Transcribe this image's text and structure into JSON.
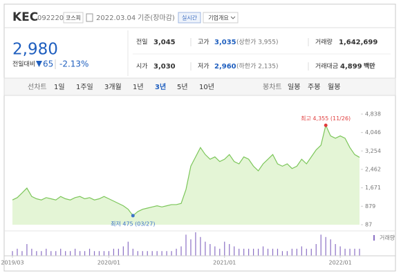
{
  "header": {
    "name": "KEC",
    "code": "092220",
    "market": "코스피",
    "date": "2022.03.04",
    "basis": "기준(장마감)",
    "realtime": "실시간",
    "company": "기업개요"
  },
  "quote": {
    "price": "2,980",
    "change_label": "전일대비",
    "change": "65",
    "change_pct": "-2.13%",
    "rows": [
      [
        [
          "전일",
          "3,045",
          ""
        ],
        [
          "고가",
          "3,035",
          "(상한가 3,955)"
        ],
        [
          "거래량",
          "1,642,699",
          ""
        ]
      ],
      [
        [
          "시가",
          "3,030",
          ""
        ],
        [
          "저가",
          "2,960",
          "(하한가 2,135)"
        ],
        [
          "거래대금",
          "4,899",
          "백만"
        ]
      ]
    ]
  },
  "tabs": {
    "line_label": "선차트",
    "line": [
      "1일",
      "1주일",
      "3개월",
      "1년",
      "3년",
      "5년",
      "10년"
    ],
    "selected": "3년",
    "candle_label": "봉차트",
    "candle": [
      "일봉",
      "주봉",
      "월봉"
    ]
  },
  "chart_data": {
    "type": "area",
    "color": "#7cc65a",
    "categories": [
      "2019/03",
      null,
      null,
      null,
      null,
      null,
      null,
      null,
      null,
      null,
      null,
      null,
      null,
      null,
      null,
      null,
      null,
      null,
      null,
      null,
      "2020/01",
      null,
      null,
      null,
      null,
      null,
      null,
      null,
      null,
      null,
      null,
      null,
      null,
      null,
      null,
      null,
      null,
      null,
      null,
      null,
      null,
      null,
      null,
      null,
      "2021/01",
      null,
      null,
      null,
      null,
      null,
      null,
      null,
      null,
      null,
      null,
      null,
      null,
      null,
      null,
      null,
      null,
      null,
      null,
      null,
      null,
      null,
      null,
      null,
      "2022/01",
      null,
      null,
      null,
      null
    ],
    "values": [
      1150,
      1250,
      1450,
      1660,
      1300,
      1200,
      1150,
      1250,
      1200,
      1150,
      1300,
      1200,
      1150,
      1250,
      1300,
      1200,
      1250,
      1150,
      1200,
      1300,
      1200,
      1100,
      1000,
      900,
      750,
      475,
      650,
      750,
      800,
      850,
      900,
      850,
      900,
      950,
      950,
      1000,
      1600,
      2600,
      3000,
      3400,
      3100,
      2900,
      3000,
      2800,
      2900,
      3100,
      2800,
      2700,
      3000,
      2900,
      2600,
      2400,
      2700,
      2900,
      3100,
      2700,
      2600,
      2700,
      2500,
      2600,
      2900,
      2700,
      3000,
      3300,
      3500,
      4355,
      3900,
      3800,
      3900,
      3800,
      3400,
      3100,
      2980
    ],
    "ylim": [
      87,
      4838
    ],
    "yticks": [
      87,
      879,
      {
        "value": 1671,
        "label": "1,671"
      },
      {
        "value": 2462,
        "label": "2,462"
      },
      {
        "value": 3254,
        "label": "3,254"
      },
      {
        "value": 4046,
        "label": "4,046"
      },
      {
        "value": 4838,
        "label": "4,838"
      }
    ],
    "high": {
      "index": 65,
      "label": "최고 4,355 (11/26)",
      "color": "#e03c3c"
    },
    "low": {
      "index": 25,
      "label": "최저 475 (03/27)",
      "color": "#3c73c8"
    },
    "volume": {
      "name": "거래량",
      "color": "#8a6fc4",
      "values": [
        2,
        3,
        2,
        5,
        3,
        2,
        2,
        3,
        2,
        2,
        3,
        2,
        2,
        3,
        2,
        2,
        3,
        2,
        2,
        2,
        2,
        3,
        3,
        4,
        6,
        3,
        2,
        2,
        2,
        2,
        2,
        2,
        2,
        2,
        3,
        4,
        9,
        7,
        10,
        8,
        6,
        5,
        4,
        3,
        6,
        5,
        4,
        3,
        3,
        3,
        3,
        3,
        4,
        3,
        3,
        3,
        2,
        2,
        3,
        3,
        4,
        3,
        3,
        5,
        9,
        8,
        7,
        5,
        4,
        3,
        3,
        3,
        3
      ]
    }
  }
}
